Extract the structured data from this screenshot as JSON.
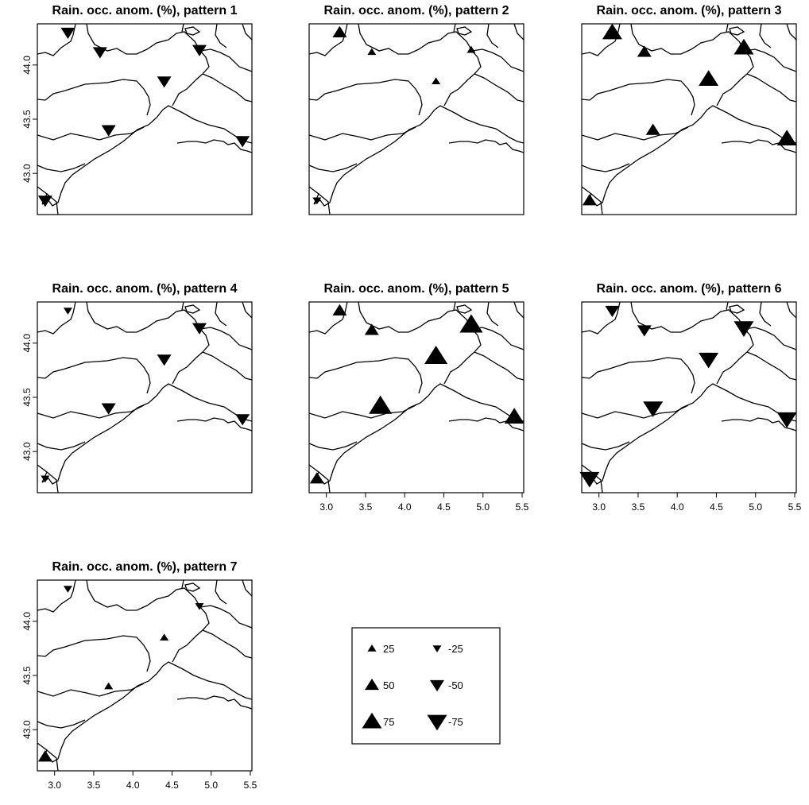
{
  "chart_data": [
    {
      "type": "map",
      "title": "Rain. occ. anom. (%), pattern 1",
      "x_ticks": [
        3.0,
        3.5,
        4.0,
        4.5,
        5.0,
        5.5
      ],
      "y_ticks": [
        "43.0",
        "43.5",
        "44.0"
      ],
      "show_x_axis": false,
      "show_y_axis": true,
      "stations": [
        {
          "lon": 3.17,
          "lat": 44.3,
          "anomaly": -50
        },
        {
          "lon": 3.58,
          "lat": 44.12,
          "anomaly": -50
        },
        {
          "lon": 4.85,
          "lat": 44.14,
          "anomaly": -50
        },
        {
          "lon": 4.4,
          "lat": 43.85,
          "anomaly": -50
        },
        {
          "lon": 3.69,
          "lat": 43.4,
          "anomaly": -50
        },
        {
          "lon": 5.4,
          "lat": 43.3,
          "anomaly": -50
        },
        {
          "lon": 2.88,
          "lat": 42.75,
          "anomaly": -50
        }
      ]
    },
    {
      "type": "map",
      "title": "Rain. occ. anom. (%), pattern 2",
      "x_ticks": [
        3.0,
        3.5,
        4.0,
        4.5,
        5.0,
        5.5
      ],
      "y_ticks": [
        "43.0",
        "43.5",
        "44.0"
      ],
      "show_x_axis": false,
      "show_y_axis": false,
      "stations": [
        {
          "lon": 3.17,
          "lat": 44.3,
          "anomaly": 50
        },
        {
          "lon": 3.58,
          "lat": 44.12,
          "anomaly": 25
        },
        {
          "lon": 4.85,
          "lat": 44.14,
          "anomaly": 25
        },
        {
          "lon": 4.4,
          "lat": 43.85,
          "anomaly": 25
        },
        {
          "lon": 2.88,
          "lat": 42.75,
          "anomaly": -25
        }
      ]
    },
    {
      "type": "map",
      "title": "Rain. occ. anom. (%), pattern 3",
      "x_ticks": [
        3.0,
        3.5,
        4.0,
        4.5,
        5.0,
        5.5
      ],
      "y_ticks": [
        "43.0",
        "43.5",
        "44.0"
      ],
      "show_x_axis": false,
      "show_y_axis": false,
      "stations": [
        {
          "lon": 3.17,
          "lat": 44.3,
          "anomaly": 75
        },
        {
          "lon": 3.58,
          "lat": 44.12,
          "anomaly": 50
        },
        {
          "lon": 4.85,
          "lat": 44.16,
          "anomaly": 75
        },
        {
          "lon": 4.4,
          "lat": 43.87,
          "anomaly": 75
        },
        {
          "lon": 3.69,
          "lat": 43.4,
          "anomaly": 50
        },
        {
          "lon": 5.4,
          "lat": 43.32,
          "anomaly": 75
        },
        {
          "lon": 2.88,
          "lat": 42.75,
          "anomaly": 50
        }
      ]
    },
    {
      "type": "map",
      "title": "Rain. occ. anom. (%), pattern 4",
      "x_ticks": [
        3.0,
        3.5,
        4.0,
        4.5,
        5.0,
        5.5
      ],
      "y_ticks": [
        "43.0",
        "43.5",
        "44.0"
      ],
      "show_x_axis": false,
      "show_y_axis": true,
      "stations": [
        {
          "lon": 3.17,
          "lat": 44.3,
          "anomaly": -25
        },
        {
          "lon": 4.85,
          "lat": 44.14,
          "anomaly": -50
        },
        {
          "lon": 4.4,
          "lat": 43.85,
          "anomaly": -50
        },
        {
          "lon": 3.69,
          "lat": 43.4,
          "anomaly": -50
        },
        {
          "lon": 5.4,
          "lat": 43.3,
          "anomaly": -50
        },
        {
          "lon": 2.88,
          "lat": 42.75,
          "anomaly": -25
        }
      ]
    },
    {
      "type": "map",
      "title": "Rain. occ. anom. (%), pattern 5",
      "x_ticks": [
        3.0,
        3.5,
        4.0,
        4.5,
        5.0,
        5.5
      ],
      "y_ticks": [
        "43.0",
        "43.5",
        "44.0"
      ],
      "show_x_axis": true,
      "show_y_axis": false,
      "stations": [
        {
          "lon": 3.17,
          "lat": 44.3,
          "anomaly": 50
        },
        {
          "lon": 3.58,
          "lat": 44.12,
          "anomaly": 50
        },
        {
          "lon": 4.85,
          "lat": 44.17,
          "anomaly": 90
        },
        {
          "lon": 4.4,
          "lat": 43.88,
          "anomaly": 90
        },
        {
          "lon": 3.69,
          "lat": 43.42,
          "anomaly": 90
        },
        {
          "lon": 5.4,
          "lat": 43.32,
          "anomaly": 75
        },
        {
          "lon": 2.88,
          "lat": 42.75,
          "anomaly": 50
        }
      ]
    },
    {
      "type": "map",
      "title": "Rain. occ. anom. (%), pattern 6",
      "x_ticks": [
        3.0,
        3.5,
        4.0,
        4.5,
        5.0,
        5.5
      ],
      "y_ticks": [
        "43.0",
        "43.5",
        "44.0"
      ],
      "show_x_axis": true,
      "show_y_axis": false,
      "stations": [
        {
          "lon": 3.17,
          "lat": 44.3,
          "anomaly": -50
        },
        {
          "lon": 3.58,
          "lat": 44.12,
          "anomaly": -50
        },
        {
          "lon": 4.85,
          "lat": 44.14,
          "anomaly": -75
        },
        {
          "lon": 4.4,
          "lat": 43.85,
          "anomaly": -75
        },
        {
          "lon": 3.69,
          "lat": 43.4,
          "anomaly": -75
        },
        {
          "lon": 5.4,
          "lat": 43.3,
          "anomaly": -75
        },
        {
          "lon": 2.88,
          "lat": 42.75,
          "anomaly": -75
        }
      ]
    },
    {
      "type": "map",
      "title": "Rain. occ. anom. (%), pattern 7",
      "x_ticks": [
        3.0,
        3.5,
        4.0,
        4.5,
        5.0,
        5.5
      ],
      "y_ticks": [
        "43.0",
        "43.5",
        "44.0"
      ],
      "show_x_axis": true,
      "show_y_axis": true,
      "stations": [
        {
          "lon": 3.17,
          "lat": 44.3,
          "anomaly": -25
        },
        {
          "lon": 4.85,
          "lat": 44.14,
          "anomaly": -25
        },
        {
          "lon": 4.4,
          "lat": 43.85,
          "anomaly": 25
        },
        {
          "lon": 3.69,
          "lat": 43.4,
          "anomaly": 25
        },
        {
          "lon": 2.88,
          "lat": 42.75,
          "anomaly": 50
        }
      ]
    }
  ],
  "legend": {
    "entries": [
      {
        "label": "25",
        "value": 25
      },
      {
        "label": "-25",
        "value": -25
      },
      {
        "label": "50",
        "value": 50
      },
      {
        "label": "-50",
        "value": -50
      },
      {
        "label": "75",
        "value": 75
      },
      {
        "label": "-75",
        "value": -75
      }
    ]
  }
}
